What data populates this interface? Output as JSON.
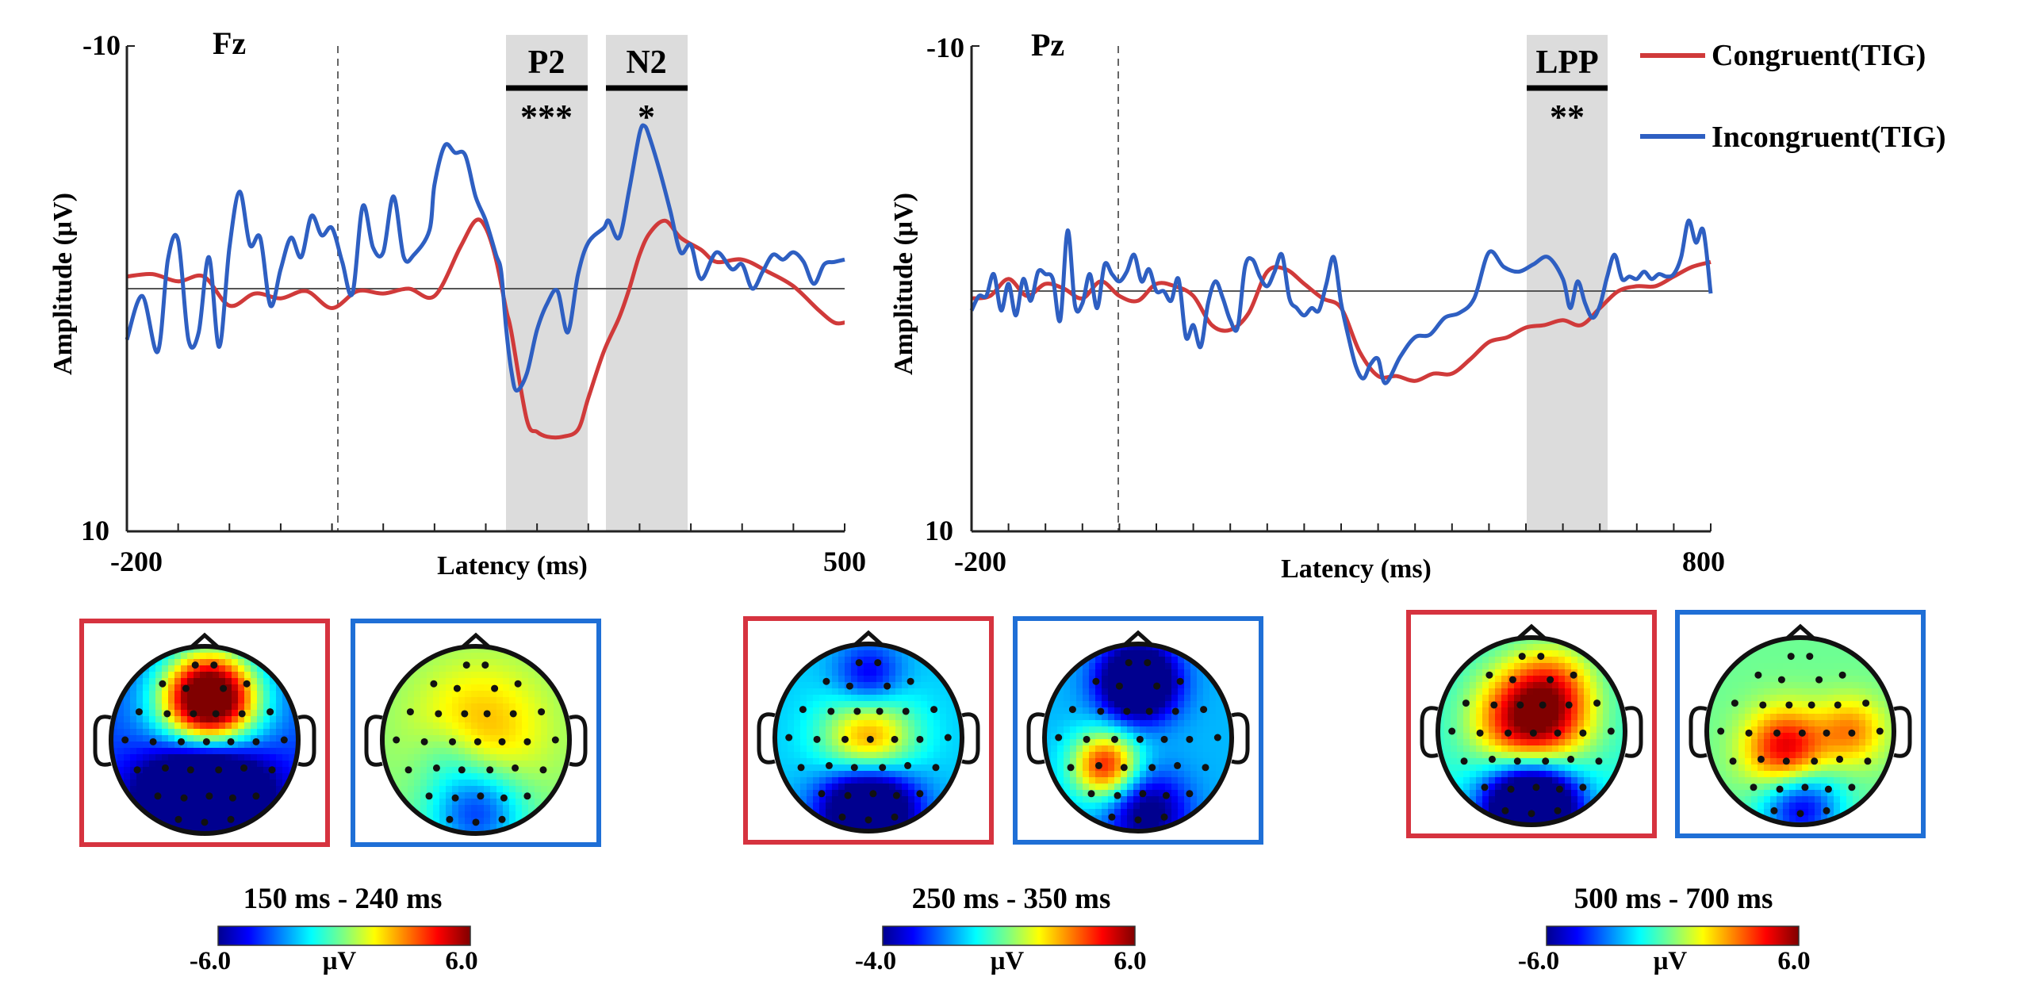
{
  "legend": {
    "congruent": "Congruent(TIG)",
    "incongruent": "Incongruent(TIG)",
    "congruent_color": "#d03a3a",
    "incongruent_color": "#2e5fc2",
    "placement": "top-right"
  },
  "chart_data": [
    {
      "type": "line",
      "channel": "Fz",
      "xlabel": "Latency (ms)",
      "ylabel": "Amplitude (μV)",
      "xlim": [
        -200,
        500
      ],
      "ylim": [
        -10,
        10
      ],
      "y_inverted": true,
      "x_tick_labels": [
        "-200",
        "500"
      ],
      "y_tick_labels": [
        "-10",
        "10"
      ],
      "stimulus_onset_ms": 0,
      "windows": [
        {
          "label": "P2",
          "sig": "***",
          "start": 150,
          "end": 240
        },
        {
          "label": "N2",
          "sig": "*",
          "start": 258,
          "end": 340
        }
      ],
      "series": [
        {
          "name": "Congruent(TIG)",
          "color": "#d03a3a",
          "x": [
            -200,
            -175,
            -150,
            -125,
            -100,
            -75,
            -50,
            -25,
            0,
            25,
            50,
            75,
            100,
            125,
            140,
            150,
            160,
            170,
            175,
            190,
            200,
            210,
            225,
            240,
            250,
            265,
            280,
            290,
            300,
            310,
            325,
            340,
            360,
            375,
            400,
            425,
            450,
            475,
            490,
            500
          ],
          "y": [
            -0.5,
            -0.6,
            -0.3,
            -0.5,
            0.7,
            0.2,
            0.4,
            0.1,
            0.8,
            0.1,
            0.2,
            0.0,
            0.3,
            -1.7,
            -2.8,
            -2.5,
            -1.2,
            0.9,
            1.8,
            5.4,
            5.9,
            6.1,
            6.1,
            5.8,
            4.5,
            2.6,
            1.2,
            0.0,
            -1.4,
            -2.3,
            -2.8,
            -2.1,
            -1.6,
            -1.1,
            -1.2,
            -0.7,
            -0.1,
            0.9,
            1.4,
            1.4
          ]
        },
        {
          "name": "Incongruent(TIG)",
          "color": "#2e5fc2",
          "x": [
            -200,
            -185,
            -170,
            -160,
            -150,
            -140,
            -130,
            -120,
            -110,
            -100,
            -90,
            -80,
            -70,
            -60,
            -50,
            -40,
            -30,
            -20,
            -10,
            0,
            10,
            20,
            30,
            40,
            50,
            60,
            70,
            80,
            95,
            100,
            110,
            120,
            130,
            140,
            150,
            160,
            165,
            170,
            175,
            180,
            190,
            200,
            210,
            220,
            230,
            240,
            250,
            265,
            270,
            280,
            290,
            300,
            305,
            310,
            320,
            330,
            340,
            350,
            360,
            375,
            390,
            400,
            410,
            420,
            430,
            440,
            450,
            460,
            470,
            480,
            490,
            500
          ],
          "y": [
            2.1,
            0.3,
            2.6,
            -1.2,
            -2.0,
            2.1,
            1.8,
            -1.3,
            2.4,
            -1.7,
            -4.0,
            -1.8,
            -2.1,
            0.7,
            -0.8,
            -2.1,
            -1.3,
            -3.0,
            -2.2,
            -2.5,
            -1.1,
            0.2,
            -3.4,
            -1.7,
            -1.5,
            -3.8,
            -1.3,
            -1.4,
            -2.4,
            -4.3,
            -5.9,
            -5.6,
            -5.5,
            -3.8,
            -2.8,
            -1.4,
            -0.7,
            1.7,
            3.4,
            4.2,
            3.5,
            1.7,
            0.6,
            0.1,
            1.8,
            -0.6,
            -1.9,
            -2.5,
            -2.8,
            -2.1,
            -4.1,
            -6.4,
            -6.7,
            -6.2,
            -4.8,
            -3.2,
            -1.5,
            -1.8,
            -0.4,
            -1.5,
            -0.8,
            -1.0,
            0.0,
            -0.7,
            -1.4,
            -1.2,
            -1.5,
            -1.1,
            -0.2,
            -1.0,
            -1.1,
            -1.2
          ]
        }
      ]
    },
    {
      "type": "line",
      "channel": "Pz",
      "xlabel": "Latency (ms)",
      "ylabel": "Amplitude (μV)",
      "xlim": [
        -200,
        800
      ],
      "ylim": [
        -10,
        10
      ],
      "y_inverted": true,
      "x_tick_labels": [
        "-200",
        "800"
      ],
      "y_tick_labels": [
        "-10",
        "10"
      ],
      "stimulus_onset_ms": 0,
      "windows": [
        {
          "label": "LPP",
          "sig": "**",
          "start": 590,
          "end": 700
        }
      ],
      "series": [
        {
          "name": "Congruent(TIG)",
          "color": "#d03a3a",
          "x": [
            -200,
            -175,
            -150,
            -125,
            -100,
            -75,
            -50,
            -25,
            0,
            25,
            50,
            75,
            100,
            125,
            150,
            175,
            200,
            225,
            250,
            275,
            300,
            325,
            350,
            375,
            400,
            425,
            450,
            475,
            500,
            525,
            550,
            575,
            600,
            625,
            650,
            675,
            700,
            725,
            750,
            775,
            800
          ],
          "y": [
            0.4,
            0.3,
            -0.4,
            0.3,
            -0.2,
            0.0,
            0.4,
            -0.3,
            0.3,
            0.5,
            -0.2,
            -0.1,
            0.3,
            1.5,
            1.7,
            1.0,
            -0.7,
            -0.8,
            -0.2,
            0.4,
            0.8,
            2.6,
            3.6,
            3.6,
            3.8,
            3.5,
            3.5,
            2.9,
            2.2,
            2.0,
            1.6,
            1.5,
            1.3,
            1.5,
            0.8,
            0.1,
            -0.1,
            -0.1,
            -0.5,
            -0.9,
            -1.1
          ]
        },
        {
          "name": "Incongruent(TIG)",
          "color": "#2e5fc2",
          "x": [
            -200,
            -190,
            -180,
            -170,
            -160,
            -150,
            -140,
            -130,
            -120,
            -110,
            -100,
            -90,
            -80,
            -70,
            -60,
            -50,
            -40,
            -30,
            -20,
            -10,
            0,
            10,
            20,
            30,
            40,
            50,
            60,
            70,
            80,
            90,
            100,
            110,
            120,
            130,
            140,
            150,
            160,
            170,
            180,
            190,
            200,
            210,
            220,
            230,
            240,
            250,
            260,
            270,
            280,
            290,
            300,
            310,
            320,
            330,
            340,
            350,
            360,
            380,
            400,
            420,
            440,
            460,
            480,
            500,
            520,
            540,
            560,
            580,
            600,
            610,
            620,
            630,
            640,
            650,
            660,
            670,
            680,
            690,
            700,
            710,
            720,
            730,
            740,
            750,
            760,
            770,
            780,
            790,
            800
          ],
          "y": [
            0.9,
            0.3,
            0.3,
            -0.6,
            0.9,
            -0.2,
            1.1,
            -0.4,
            0.5,
            -0.7,
            -0.6,
            -0.4,
            1.3,
            -2.4,
            0.7,
            0.6,
            -0.6,
            0.8,
            -1.0,
            -0.6,
            -0.3,
            -0.7,
            -1.4,
            -0.3,
            -0.8,
            0.1,
            0.1,
            0.5,
            -0.4,
            2.0,
            1.5,
            2.4,
            0.6,
            -0.3,
            0.4,
            1.3,
            1.6,
            -0.9,
            -1.2,
            -0.5,
            -0.1,
            -0.7,
            -1.4,
            0.4,
            0.8,
            1.1,
            0.8,
            0.9,
            -0.2,
            -1.3,
            0.6,
            2.0,
            3.2,
            3.7,
            3.1,
            2.9,
            3.9,
            2.8,
            2.0,
            1.9,
            1.2,
            1.0,
            0.4,
            -1.5,
            -0.9,
            -0.7,
            -1.0,
            -1.3,
            -0.4,
            0.8,
            -0.3,
            0.6,
            1.2,
            0.7,
            -0.5,
            -1.4,
            -0.4,
            -0.5,
            -0.4,
            -0.7,
            -0.4,
            -0.6,
            -0.5,
            -0.6,
            -1.3,
            -2.8,
            -1.9,
            -2.4,
            0.2
          ]
        }
      ]
    },
    {
      "type": "heatmap",
      "subtype": "topographic-maps",
      "maps": [
        {
          "time_window": "150 ms - 240 ms",
          "colorbar_min": "-6.0",
          "colorbar_max": "6.0",
          "unit": "μV",
          "congruent_peak": "frontal positive",
          "incongruent_peak": "broad weak positive"
        },
        {
          "time_window": "250 ms - 350 ms",
          "colorbar_min": "-4.0",
          "colorbar_max": "6.0",
          "unit": "μV",
          "congruent_peak": "central positive",
          "incongruent_peak": "frontal negative, left-central positive"
        },
        {
          "time_window": "500 ms - 700 ms",
          "colorbar_min": "-6.0",
          "colorbar_max": "6.0",
          "unit": "μV",
          "congruent_peak": "central-parietal strong positive",
          "incongruent_peak": "left-central positive"
        }
      ],
      "colormap": [
        "#00008f",
        "#0040ff",
        "#00d0ff",
        "#60ff9f",
        "#ffff00",
        "#ff8000",
        "#ff0000",
        "#800000"
      ]
    }
  ]
}
